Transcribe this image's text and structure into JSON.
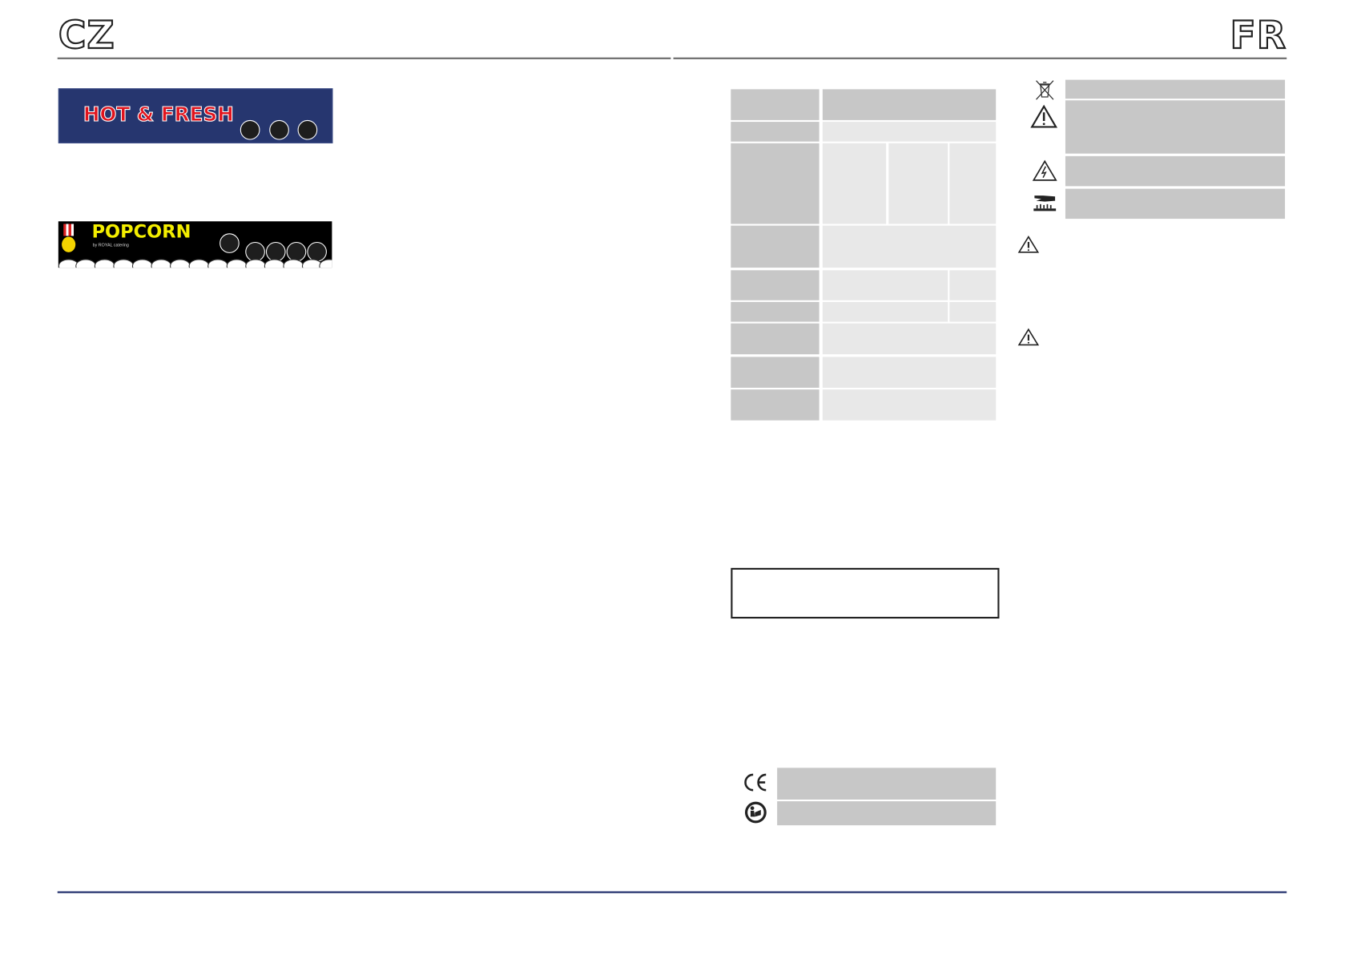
{
  "header": {
    "left_lang": "CZ",
    "right_lang": "FR"
  },
  "panels": {
    "hot_fresh": {
      "title": "HOT & FRESH",
      "knob_count": 3,
      "bg_color": "#26366f",
      "title_color": "#e0141e"
    },
    "popcorn": {
      "title": "POPCORN",
      "subtitle": "by ROYAL catering",
      "knob_count": 5,
      "title_color": "#f4ee00"
    }
  },
  "icons": {
    "safety": [
      "weee-bin-icon",
      "warning-icon",
      "electric-hazard-icon",
      "hot-surface-icon"
    ],
    "notes": [
      "warning-icon",
      "warning-icon"
    ],
    "compliance": [
      "ce-mark-icon",
      "read-manual-icon"
    ]
  },
  "colors": {
    "cell_dark": "#c7c7c7",
    "cell_light": "#e8e8e8",
    "rule": "#6b6b6b",
    "footer_rule": "#1f2d6b"
  }
}
